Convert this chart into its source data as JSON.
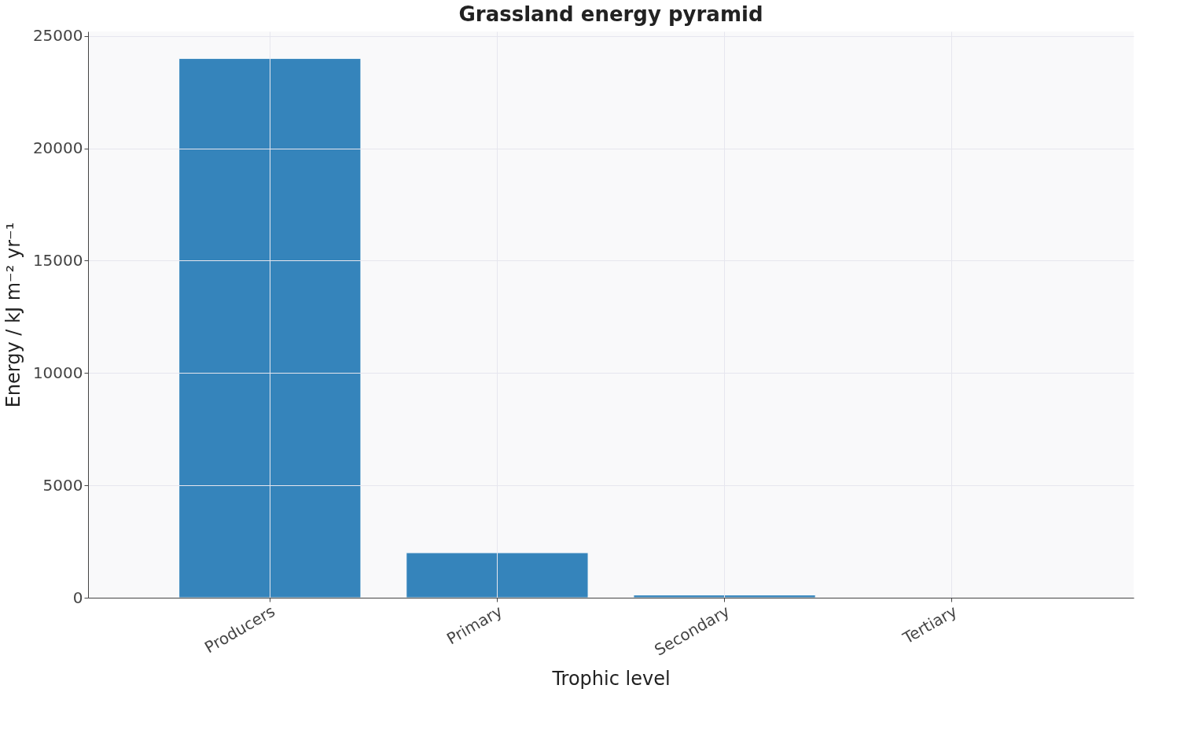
{
  "chart_data": {
    "type": "bar",
    "title": "Grassland energy pyramid",
    "xlabel": "Trophic level",
    "ylabel": "Energy / kJ m⁻² yr⁻¹",
    "categories": [
      "Producers",
      "Primary",
      "Secondary",
      "Tertiary"
    ],
    "values": [
      24000,
      2000,
      120,
      null
    ],
    "color": "#3584bb",
    "ylim": [
      0,
      25200
    ],
    "yticks": [
      0,
      5000,
      10000,
      15000,
      20000,
      25000
    ],
    "grid": true
  }
}
